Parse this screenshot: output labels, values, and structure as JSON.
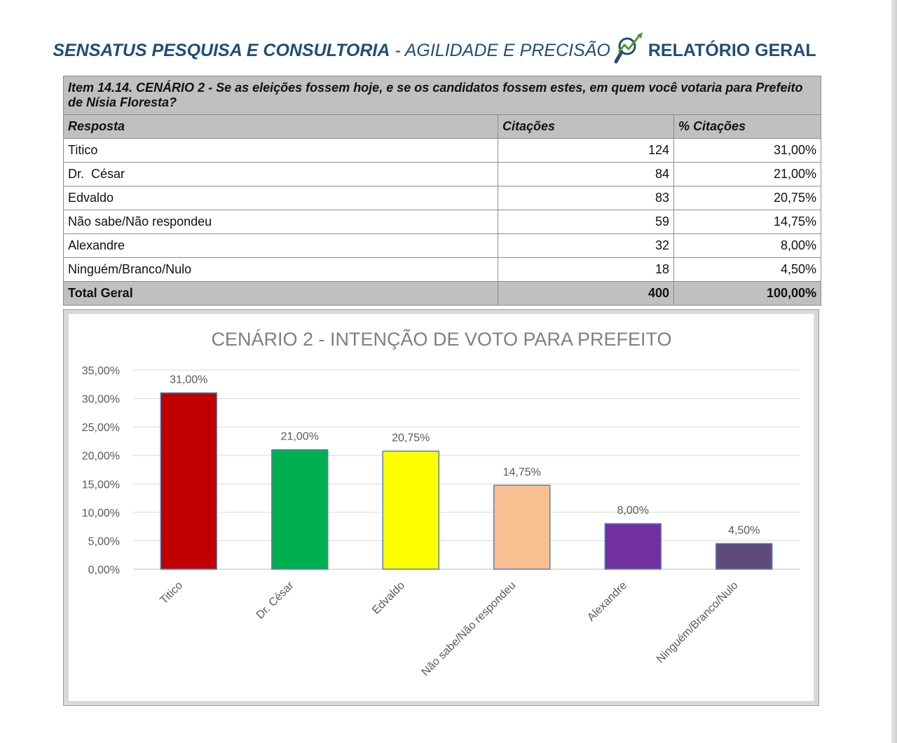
{
  "header": {
    "brand": "SENSATUS PESQUISA E CONSULTORIA",
    "separator": " - ",
    "tagline": "AGILIDADE E PRECISÃO",
    "report": "RELATÓRIO GERAL",
    "logo_icon": "magnifier-chart-icon"
  },
  "table": {
    "question": "Item 14.14. CENÁRIO 2 - Se as eleições fossem hoje, e se os candidatos fossem estes, em quem você votaria para Prefeito de Nísia Floresta?",
    "columns": [
      "Resposta",
      "Citações",
      "% Citações"
    ],
    "rows": [
      {
        "label": "Titico",
        "count": "124",
        "pct": "31,00%"
      },
      {
        "label": "Dr.  César",
        "count": "84",
        "pct": "21,00%"
      },
      {
        "label": "Edvaldo",
        "count": "83",
        "pct": "20,75%"
      },
      {
        "label": "Não sabe/Não respondeu",
        "count": "59",
        "pct": "14,75%"
      },
      {
        "label": "Alexandre",
        "count": "32",
        "pct": "8,00%"
      },
      {
        "label": "Ninguém/Branco/Nulo",
        "count": "18",
        "pct": "4,50%"
      }
    ],
    "total": {
      "label": "Total Geral",
      "count": "400",
      "pct": "100,00%"
    }
  },
  "chart_data": {
    "type": "bar",
    "title": "CENÁRIO 2 - INTENÇÃO DE VOTO PARA PREFEITO",
    "categories": [
      "Titico",
      "Dr. César",
      "Edvaldo",
      "Não sabe/Não respondeu",
      "Alexandre",
      "Ninguém/Branco/Nulo"
    ],
    "values": [
      31.0,
      21.0,
      20.75,
      14.75,
      8.0,
      4.5
    ],
    "value_labels": [
      "31,00%",
      "21,00%",
      "20,75%",
      "14,75%",
      "8,00%",
      "4,50%"
    ],
    "colors": [
      "#c00000",
      "#00b050",
      "#ffff00",
      "#f8c090",
      "#7030a0",
      "#604a7b"
    ],
    "ylim": [
      0,
      35
    ],
    "yticks": [
      "0,00%",
      "5,00%",
      "10,00%",
      "15,00%",
      "20,00%",
      "25,00%",
      "30,00%",
      "35,00%"
    ],
    "xlabel": "",
    "ylabel": "",
    "grid": true,
    "legend": "none"
  }
}
